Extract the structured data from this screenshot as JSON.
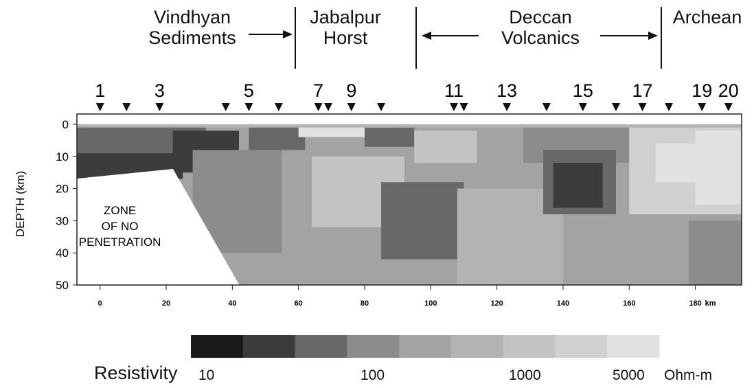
{
  "regions": [
    {
      "label": "Vindhyan\nSediments"
    },
    {
      "label": "Jabalpur\nHorst"
    },
    {
      "label": "Deccan\nVolcanics"
    },
    {
      "label": "Archean"
    }
  ],
  "zone_label": "ZONE\nOF NO\nPENETRATION",
  "chart_data": {
    "type": "heatmap",
    "title": "",
    "xlabel": "",
    "x_unit": "km",
    "ylabel": "DEPTH (km)",
    "xlim": [
      -7,
      194
    ],
    "ylim": [
      50,
      0
    ],
    "x_ticks": [
      0,
      20,
      40,
      60,
      80,
      100,
      120,
      140,
      160,
      180
    ],
    "y_ticks": [
      0,
      10,
      20,
      30,
      40,
      50
    ],
    "station_markers_km": [
      0,
      8,
      18,
      38,
      45,
      54,
      66,
      69,
      76,
      85,
      107,
      110,
      123,
      135,
      146,
      156,
      164,
      172,
      182,
      190
    ],
    "station_labels": [
      {
        "label": "1",
        "km": 0
      },
      {
        "label": "3",
        "km": 18
      },
      {
        "label": "5",
        "km": 45
      },
      {
        "label": "7",
        "km": 66
      },
      {
        "label": "9",
        "km": 76
      },
      {
        "label": "11",
        "km": 107
      },
      {
        "label": "13",
        "km": 123
      },
      {
        "label": "15",
        "km": 146
      },
      {
        "label": "17",
        "km": 164
      },
      {
        "label": "19",
        "km": 182
      },
      {
        "label": "20",
        "km": 190
      }
    ],
    "zone_of_no_penetration": [
      [
        -7,
        17
      ],
      [
        22,
        14
      ],
      [
        42,
        50
      ],
      [
        -7,
        50
      ]
    ],
    "colorbar": {
      "label": "Resistivity",
      "unit": "Ohm-m",
      "tick_labels": [
        "10",
        "100",
        "1000",
        "5000"
      ],
      "colors": [
        "#1a1a1a",
        "#3c3c3c",
        "#686868",
        "#8c8c8c",
        "#a3a3a3",
        "#b3b3b3",
        "#c3c3c3",
        "#d0d0d0",
        "#e2e2e2"
      ]
    },
    "resistivity_zones": [
      {
        "x": [
          -7,
          194
        ],
        "y": [
          0,
          50
        ],
        "level": 4
      },
      {
        "x": [
          -7,
          32
        ],
        "y": [
          0,
          15
        ],
        "level": 2
      },
      {
        "x": [
          -7,
          25
        ],
        "y": [
          9,
          17
        ],
        "level": 1
      },
      {
        "x": [
          22,
          42
        ],
        "y": [
          2,
          15
        ],
        "level": 1
      },
      {
        "x": [
          28,
          55
        ],
        "y": [
          8,
          40
        ],
        "level": 3
      },
      {
        "x": [
          45,
          62
        ],
        "y": [
          0,
          8
        ],
        "level": 2
      },
      {
        "x": [
          60,
          90
        ],
        "y": [
          0,
          4
        ],
        "level": 8
      },
      {
        "x": [
          64,
          92
        ],
        "y": [
          10,
          32
        ],
        "level": 6
      },
      {
        "x": [
          80,
          95
        ],
        "y": [
          1,
          7
        ],
        "level": 2
      },
      {
        "x": [
          95,
          114
        ],
        "y": [
          2,
          12
        ],
        "level": 6
      },
      {
        "x": [
          85,
          110
        ],
        "y": [
          18,
          42
        ],
        "level": 2
      },
      {
        "x": [
          108,
          140
        ],
        "y": [
          20,
          50
        ],
        "level": 5
      },
      {
        "x": [
          128,
          160
        ],
        "y": [
          0,
          12
        ],
        "level": 3
      },
      {
        "x": [
          134,
          156
        ],
        "y": [
          8,
          28
        ],
        "level": 2
      },
      {
        "x": [
          137,
          152
        ],
        "y": [
          12,
          26
        ],
        "level": 1
      },
      {
        "x": [
          160,
          194
        ],
        "y": [
          0,
          28
        ],
        "level": 7
      },
      {
        "x": [
          168,
          180
        ],
        "y": [
          6,
          18
        ],
        "level": 8
      },
      {
        "x": [
          180,
          194
        ],
        "y": [
          2,
          25
        ],
        "level": 8
      },
      {
        "x": [
          178,
          194
        ],
        "y": [
          30,
          50
        ],
        "level": 3
      },
      {
        "x": [
          -7,
          194
        ],
        "y": [
          0,
          1
        ],
        "level": 5
      }
    ]
  }
}
